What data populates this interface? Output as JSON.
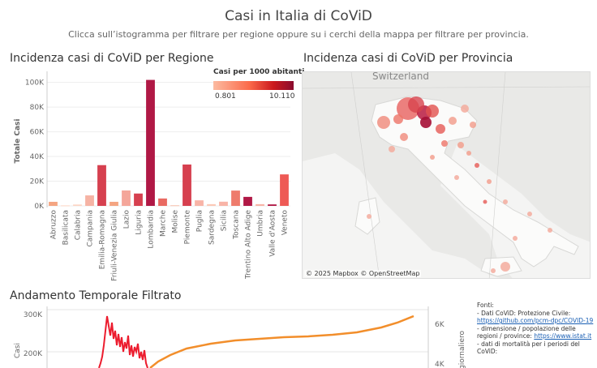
{
  "header": {
    "title": "Casi in Italia di CoViD",
    "subtitle": "Clicca sull’istogramma per filtrare per regione oppure su i cerchi della mappa per filtrare per provincia."
  },
  "bar_section": {
    "title": "Incidenza casi di CoViD per Regione"
  },
  "map_section": {
    "title": "Incidenza casi di CoViD per Provincia",
    "attribution": "© 2025 Mapbox © OpenStreetMap",
    "country_label": "Switzerland"
  },
  "legend": {
    "title": "Casi per 1000 abitanti",
    "min": "0.801",
    "max": "10.110",
    "colors": [
      "#fcbba1",
      "#fb6a4a",
      "#cb181d",
      "#a50f15"
    ]
  },
  "line_section": {
    "title": "Andamento Temporale Filtrato",
    "left_axis_label": "Casi",
    "right_axis_label": "giornaliero"
  },
  "sources": {
    "heading": "Fonti:",
    "l1": " - Dati CoViD: Protezione Civile:",
    "l1_link": "https://github.com/pcm-dpc/COVID-19",
    "l2": " - dimensione / popolazione delle regioni / province:",
    "l2_link": "https://www.istat.it",
    "l3": " - dati di mortalità per i periodi del CoViD:"
  },
  "chart_data": [
    {
      "type": "bar",
      "title": "Incidenza casi di CoViD per Regione",
      "ylabel": "Totale Casi",
      "ylim": [
        0,
        105000
      ],
      "yticks": [
        "0K",
        "20K",
        "40K",
        "60K",
        "80K",
        "100K"
      ],
      "categories": [
        "Abruzzo",
        "Basilicata",
        "Calabria",
        "Campania",
        "Emilia-Romagna",
        "Friuli-Venezia Giulia",
        "Lazio",
        "Liguria",
        "Lombardia",
        "Marche",
        "Molise",
        "Piemonte",
        "Puglia",
        "Sardegna",
        "Sicilia",
        "Toscana",
        "Trentino Alto Adige",
        "Umbria",
        "Valle d'Aosta",
        "Veneto"
      ],
      "values": [
        3300,
        400,
        1100,
        8500,
        33000,
        3300,
        12500,
        10000,
        102000,
        6000,
        500,
        33500,
        4500,
        1400,
        3400,
        12400,
        7300,
        1400,
        1200,
        25500
      ],
      "colors": [
        "#f4a582",
        "#fcd5c4",
        "#fcd5c4",
        "#f6b3a4",
        "#d6404f",
        "#f4a582",
        "#f4a69a",
        "#d6404f",
        "#b01845",
        "#e96a62",
        "#f7c0ac",
        "#d6404f",
        "#f8b4a7",
        "#fbc8b6",
        "#f8b4a7",
        "#ee7b6c",
        "#b01845",
        "#f8b4a7",
        "#b01845",
        "#ee5a55"
      ]
    },
    {
      "type": "line",
      "title": "Andamento Temporale Filtrato",
      "left_yticks": [
        "200K",
        "300K"
      ],
      "right_yticks": [
        "4K",
        "6K"
      ]
    }
  ]
}
